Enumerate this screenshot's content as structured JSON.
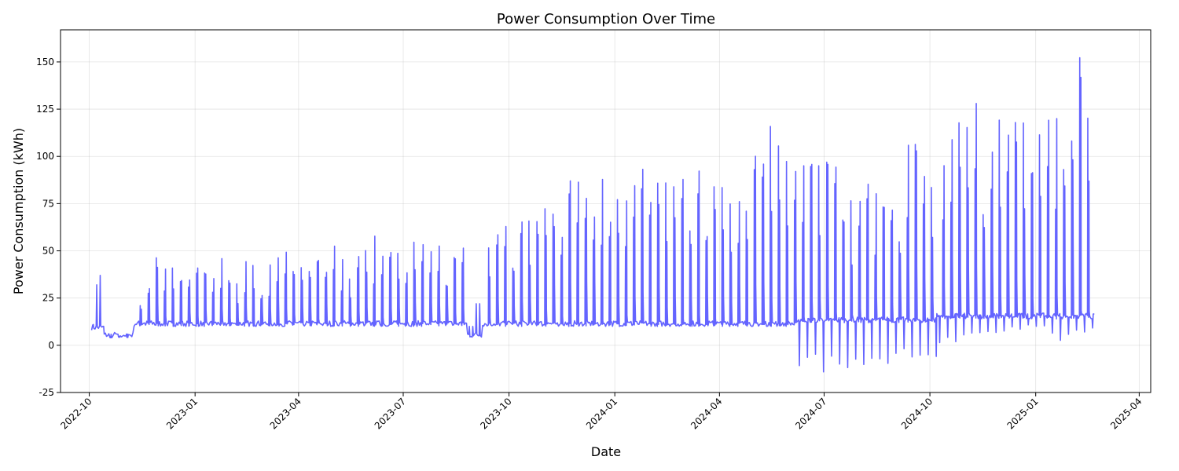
{
  "chart_data": {
    "type": "line",
    "title": "Power Consumption Over Time",
    "xlabel": "Date",
    "ylabel": "Power Consumption (kWh)",
    "xlim": [
      "2022-09-06",
      "2025-04-11"
    ],
    "ylim": [
      -25,
      167
    ],
    "x_ticks": [
      "2022-10",
      "2023-01",
      "2023-04",
      "2023-07",
      "2023-10",
      "2024-01",
      "2024-04",
      "2024-07",
      "2024-10",
      "2025-01",
      "2025-04"
    ],
    "y_ticks": [
      -25,
      0,
      25,
      50,
      75,
      100,
      125,
      150
    ],
    "grid": true,
    "line_color": "#6464ff",
    "series": [
      {
        "segments": [
          {
            "start": "2022-10-03",
            "end": "2022-10-13",
            "base": 8,
            "peaks": [
              11,
              32,
              37,
              10
            ]
          },
          {
            "start": "2022-10-14",
            "end": "2022-11-08",
            "base": 4,
            "peaks": [
              4,
              5,
              6
            ]
          },
          {
            "start": "2022-11-09",
            "end": "2023-08-25",
            "base": 10,
            "peaks": [
              25,
              35,
              57,
              48,
              43,
              36,
              47,
              40,
              37,
              46,
              42,
              36,
              48,
              38,
              43,
              58,
              51,
              48,
              44,
              56,
              55,
              55,
              51,
              40,
              49,
              52,
              59,
              56,
              56,
              54,
              58,
              60,
              58,
              56,
              58,
              65
            ]
          },
          {
            "start": "2023-08-26",
            "end": "2023-09-07",
            "base": 4,
            "peaks": [
              10,
              22
            ]
          },
          {
            "start": "2023-09-08",
            "end": "2024-06-06",
            "base": 10,
            "peaks": [
              62,
              65,
              63,
              77,
              80,
              89,
              85,
              91,
              101,
              95,
              88,
              79,
              92,
              106,
              95,
              89,
              101,
              93,
              86,
              95,
              99,
              90,
              97,
              103,
              110,
              117,
              115,
              101
            ]
          },
          {
            "start": "2024-06-07",
            "end": "2024-10-06",
            "base": 12,
            "dips": [
              -17,
              -15,
              -13,
              -12,
              -14,
              -10,
              -11,
              -9,
              -8,
              -7
            ],
            "peaks": [
              103,
              102,
              100,
              77,
              107,
              90,
              85,
              88,
              114,
              99
            ]
          },
          {
            "start": "2024-10-07",
            "end": "2025-02-21",
            "base": 14,
            "dips": [
              -2,
              3,
              5,
              8,
              10,
              2,
              6
            ],
            "peaks": [
              130,
              123,
              125,
              135,
              120,
              129,
              131,
              130,
              126,
              130,
              135,
              139,
              154,
              158,
              130
            ]
          }
        ]
      }
    ]
  }
}
